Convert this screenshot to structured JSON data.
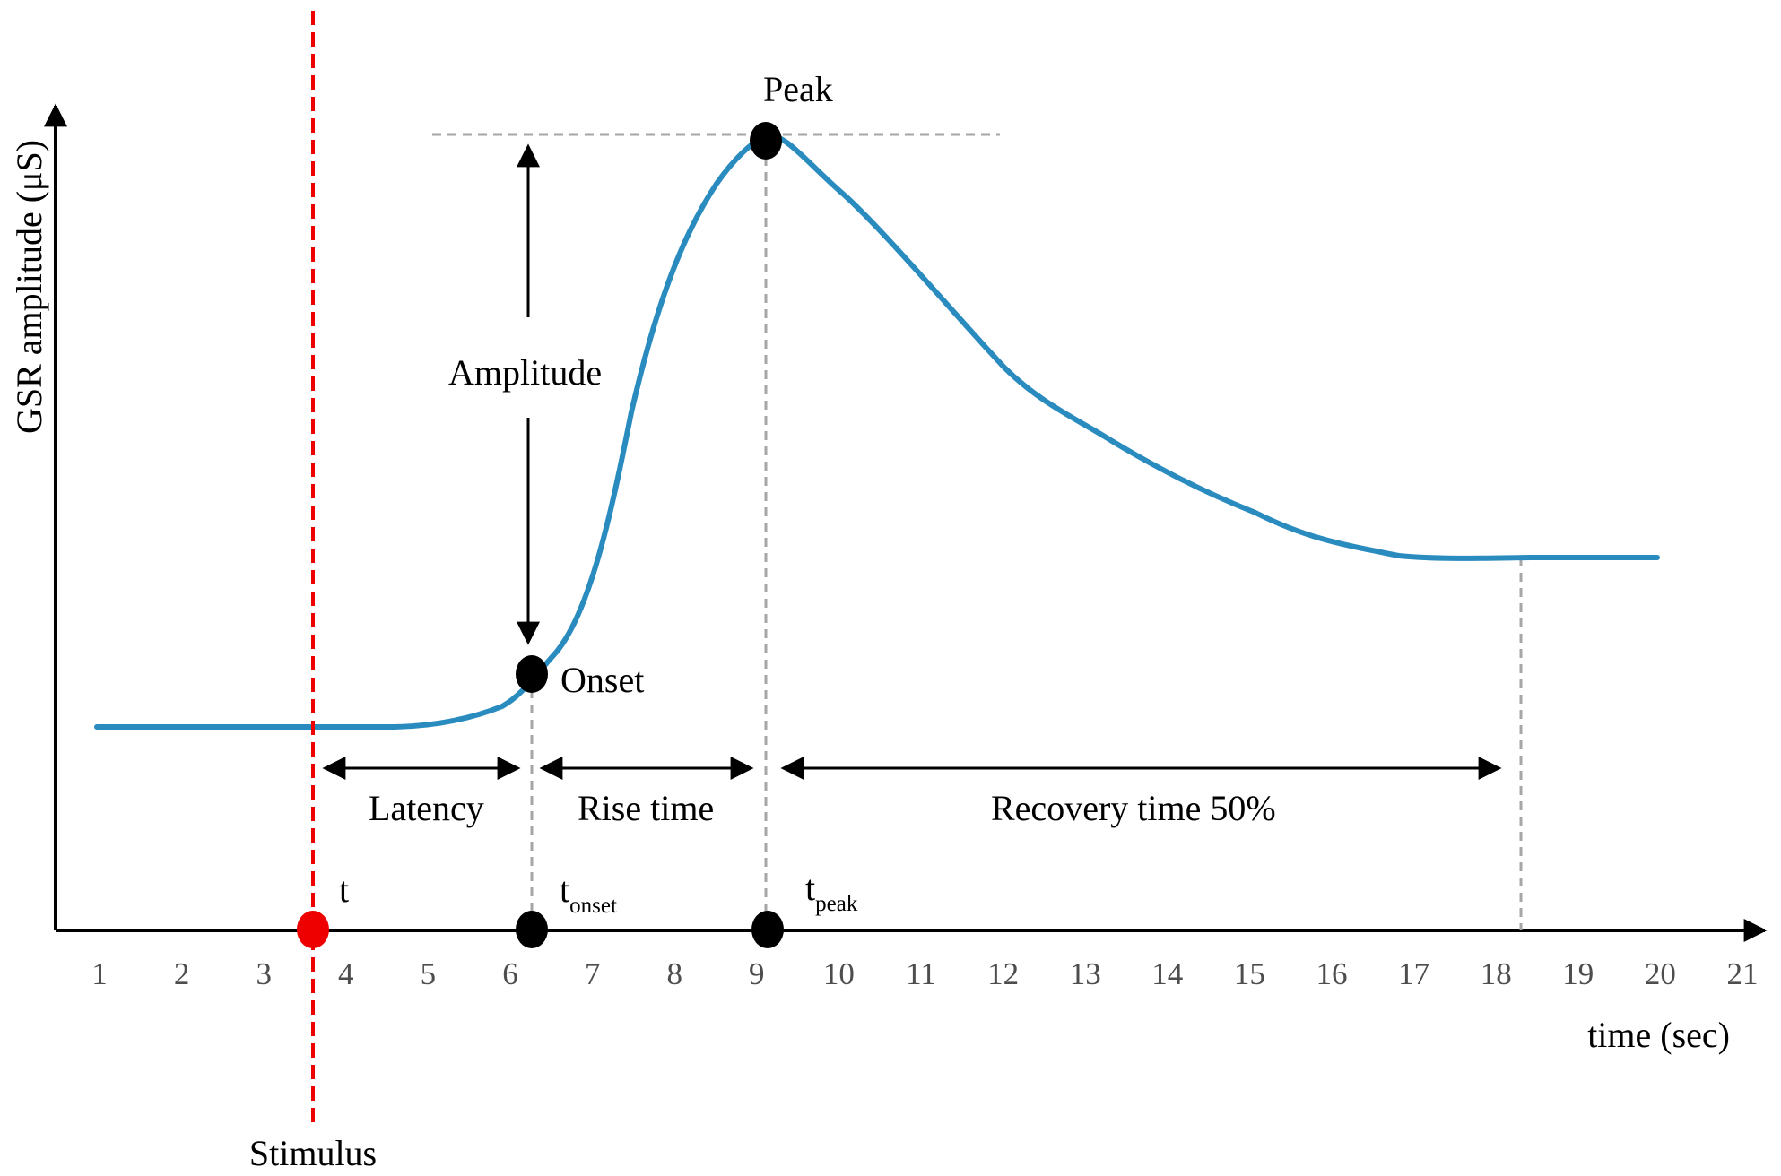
{
  "axes": {
    "y_label": "GSR amplitude (μS)",
    "x_label": "time (sec)",
    "tick_labels": [
      "1",
      "2",
      "3",
      "4",
      "5",
      "6",
      "7",
      "8",
      "9",
      "10",
      "11",
      "12",
      "13",
      "14",
      "15",
      "16",
      "17",
      "18",
      "19",
      "20",
      "21"
    ]
  },
  "labels": {
    "peak": "Peak",
    "amplitude": "Amplitude",
    "onset": "Onset",
    "latency": "Latency",
    "rise_time": "Rise time",
    "recovery_time": "Recovery time 50%",
    "stimulus": "Stimulus",
    "t_stimulus": "t",
    "t_onset_base": "t",
    "t_onset_sub": "onset",
    "t_peak_base": "t",
    "t_peak_sub": "peak"
  },
  "colors": {
    "curve": "#2a8bbf",
    "stimulus": "#ee0000",
    "guide": "#a6a6a6",
    "axis": "#000000"
  }
}
